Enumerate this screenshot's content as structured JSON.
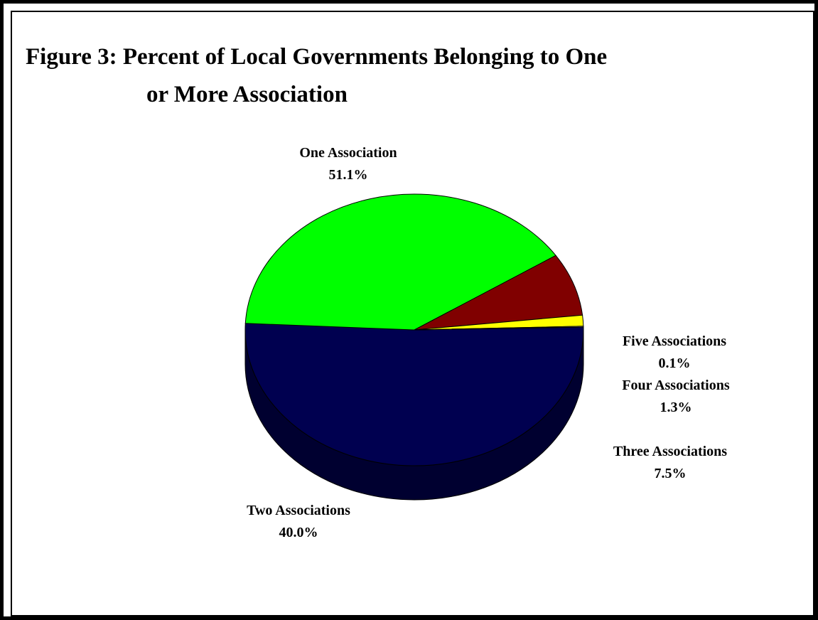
{
  "chart_data": {
    "type": "pie",
    "title_line_1": "Figure 3:  Percent of Local Governments Belonging to One",
    "title_line_2": "or More Association",
    "slices": [
      {
        "name": "One Association",
        "value": 51.1,
        "value_label": "51.1%",
        "color": "#000050",
        "side_color": "#000030"
      },
      {
        "name": "Two Associations",
        "value": 40.0,
        "value_label": "40.0%",
        "color": "#00ff00",
        "side_color": "#008000"
      },
      {
        "name": "Three Associations",
        "value": 7.5,
        "value_label": "7.5%",
        "color": "#800000",
        "side_color": "#4a0000"
      },
      {
        "name": "Four Associations",
        "value": 1.3,
        "value_label": "1.3%",
        "color": "#ffff00",
        "side_color": "#9a9a00"
      },
      {
        "name": "Five Associations",
        "value": 0.1,
        "value_label": "0.1%",
        "color": "#fffff0",
        "side_color": "#b0b0a0"
      }
    ],
    "style": "3d-pie",
    "legend": "none"
  }
}
